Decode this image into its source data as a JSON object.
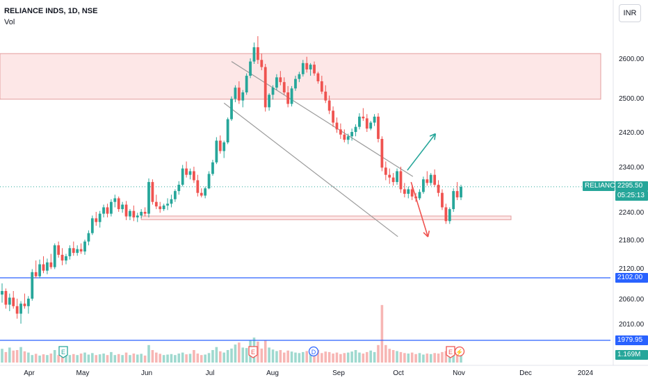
{
  "header": {
    "title": "RELIANCE INDS, 1D, NSE",
    "indicator": "Vol"
  },
  "currency_button": "INR",
  "colors": {
    "up": "#26a69a",
    "down": "#ef5350",
    "vol_up": "#9fd9cf",
    "vol_down": "#f7b6b4",
    "hline": "#2962ff",
    "zone_fill": "#fde7e7",
    "zone_stroke": "#e39c9c",
    "channel": "#9b9b9b",
    "dotted": "#26a69a",
    "axis_text": "#131722"
  },
  "price_axis": {
    "ticks": [
      "2600.00",
      "2500.00",
      "2420.00",
      "2340.00",
      "2240.00",
      "2180.00",
      "2120.00",
      "2060.00",
      "2010.00"
    ]
  },
  "time_axis": {
    "labels": [
      "Apr",
      "May",
      "Jun",
      "Jul",
      "Aug",
      "Sep",
      "Oct",
      "Nov",
      "Dec",
      "2024"
    ]
  },
  "price_labels": {
    "last_symbol": "RELIANCE",
    "last_price": "2295.50",
    "countdown": "05:25:13",
    "line_1": "2102.00",
    "line_2": "1979.95",
    "volume": "1.169M"
  },
  "event_markers": [
    "E",
    "E",
    "D",
    "E",
    "⚡"
  ],
  "chart_data": {
    "type": "candlestick",
    "title": "RELIANCE INDS, 1D, NSE",
    "ylim": [
      1940,
      2705
    ],
    "x_labels": [
      "Apr",
      "May",
      "Jun",
      "Jul",
      "Aug",
      "Sep",
      "Oct",
      "Nov",
      "Dec",
      "2024"
    ],
    "candles": [
      [
        2068,
        2090,
        2052,
        2075
      ],
      [
        2075,
        2080,
        2040,
        2048
      ],
      [
        2048,
        2070,
        2035,
        2062
      ],
      [
        2062,
        2075,
        2040,
        2045
      ],
      [
        2045,
        2060,
        2020,
        2030
      ],
      [
        2030,
        2055,
        2010,
        2050
      ],
      [
        2050,
        2070,
        2040,
        2045
      ],
      [
        2045,
        2065,
        2030,
        2060
      ],
      [
        2060,
        2118,
        2056,
        2112
      ],
      [
        2112,
        2136,
        2100,
        2104
      ],
      [
        2104,
        2138,
        2100,
        2128
      ],
      [
        2128,
        2145,
        2110,
        2115
      ],
      [
        2115,
        2140,
        2108,
        2132
      ],
      [
        2132,
        2150,
        2118,
        2122
      ],
      [
        2122,
        2172,
        2118,
        2168
      ],
      [
        2168,
        2176,
        2142,
        2148
      ],
      [
        2148,
        2162,
        2126,
        2136
      ],
      [
        2136,
        2150,
        2128,
        2145
      ],
      [
        2145,
        2168,
        2138,
        2162
      ],
      [
        2162,
        2176,
        2146,
        2152
      ],
      [
        2152,
        2168,
        2146,
        2160
      ],
      [
        2160,
        2172,
        2150,
        2155
      ],
      [
        2155,
        2180,
        2148,
        2176
      ],
      [
        2176,
        2200,
        2168,
        2194
      ],
      [
        2194,
        2232,
        2190,
        2226
      ],
      [
        2226,
        2240,
        2210,
        2218
      ],
      [
        2218,
        2242,
        2206,
        2236
      ],
      [
        2236,
        2256,
        2228,
        2250
      ],
      [
        2250,
        2258,
        2228,
        2236
      ],
      [
        2236,
        2268,
        2230,
        2262
      ],
      [
        2262,
        2278,
        2250,
        2270
      ],
      [
        2270,
        2274,
        2240,
        2246
      ],
      [
        2246,
        2262,
        2238,
        2256
      ],
      [
        2256,
        2264,
        2222,
        2230
      ],
      [
        2230,
        2246,
        2222,
        2242
      ],
      [
        2242,
        2254,
        2220,
        2228
      ],
      [
        2228,
        2238,
        2218,
        2232
      ],
      [
        2232,
        2246,
        2226,
        2240
      ],
      [
        2240,
        2250,
        2230,
        2236
      ],
      [
        2236,
        2314,
        2228,
        2306
      ],
      [
        2306,
        2312,
        2256,
        2262
      ],
      [
        2262,
        2278,
        2246,
        2252
      ],
      [
        2252,
        2262,
        2238,
        2246
      ],
      [
        2246,
        2258,
        2242,
        2254
      ],
      [
        2254,
        2270,
        2244,
        2258
      ],
      [
        2258,
        2278,
        2250,
        2268
      ],
      [
        2268,
        2290,
        2262,
        2286
      ],
      [
        2286,
        2308,
        2278,
        2300
      ],
      [
        2300,
        2344,
        2296,
        2336
      ],
      [
        2336,
        2352,
        2316,
        2322
      ],
      [
        2322,
        2336,
        2312,
        2330
      ],
      [
        2330,
        2340,
        2304,
        2310
      ],
      [
        2310,
        2322,
        2274,
        2282
      ],
      [
        2282,
        2292,
        2272,
        2276
      ],
      [
        2276,
        2296,
        2270,
        2292
      ],
      [
        2292,
        2330,
        2290,
        2324
      ],
      [
        2324,
        2356,
        2320,
        2350
      ],
      [
        2350,
        2408,
        2346,
        2400
      ],
      [
        2400,
        2412,
        2370,
        2376
      ],
      [
        2376,
        2400,
        2360,
        2396
      ],
      [
        2396,
        2454,
        2392,
        2450
      ],
      [
        2450,
        2504,
        2446,
        2498
      ],
      [
        2498,
        2532,
        2490,
        2526
      ],
      [
        2526,
        2542,
        2486,
        2494
      ],
      [
        2494,
        2520,
        2478,
        2514
      ],
      [
        2514,
        2562,
        2508,
        2556
      ],
      [
        2556,
        2600,
        2550,
        2592
      ],
      [
        2592,
        2640,
        2586,
        2628
      ],
      [
        2628,
        2656,
        2586,
        2596
      ],
      [
        2596,
        2612,
        2570,
        2578
      ],
      [
        2578,
        2586,
        2468,
        2478
      ],
      [
        2478,
        2512,
        2470,
        2508
      ],
      [
        2508,
        2532,
        2496,
        2526
      ],
      [
        2526,
        2560,
        2520,
        2552
      ],
      [
        2552,
        2568,
        2532,
        2540
      ],
      [
        2540,
        2552,
        2508,
        2514
      ],
      [
        2514,
        2530,
        2478,
        2486
      ],
      [
        2486,
        2530,
        2480,
        2524
      ],
      [
        2524,
        2556,
        2518,
        2548
      ],
      [
        2548,
        2566,
        2540,
        2560
      ],
      [
        2560,
        2596,
        2554,
        2588
      ],
      [
        2588,
        2604,
        2564,
        2572
      ],
      [
        2572,
        2588,
        2556,
        2584
      ],
      [
        2584,
        2592,
        2556,
        2562
      ],
      [
        2562,
        2566,
        2536,
        2542
      ],
      [
        2542,
        2556,
        2510,
        2516
      ],
      [
        2516,
        2532,
        2488,
        2494
      ],
      [
        2494,
        2506,
        2462,
        2470
      ],
      [
        2470,
        2480,
        2432,
        2442
      ],
      [
        2442,
        2454,
        2418,
        2426
      ],
      [
        2426,
        2440,
        2404,
        2414
      ],
      [
        2414,
        2426,
        2396,
        2402
      ],
      [
        2402,
        2416,
        2392,
        2410
      ],
      [
        2410,
        2428,
        2400,
        2420
      ],
      [
        2420,
        2438,
        2410,
        2432
      ],
      [
        2432,
        2464,
        2426,
        2456
      ],
      [
        2456,
        2476,
        2446,
        2452
      ],
      [
        2452,
        2462,
        2420,
        2428
      ],
      [
        2428,
        2446,
        2424,
        2442
      ],
      [
        2442,
        2462,
        2434,
        2456
      ],
      [
        2456,
        2464,
        2396,
        2404
      ],
      [
        2404,
        2410,
        2330,
        2338
      ],
      [
        2338,
        2352,
        2310,
        2322
      ],
      [
        2322,
        2336,
        2302,
        2316
      ],
      [
        2316,
        2326,
        2298,
        2306
      ],
      [
        2306,
        2336,
        2300,
        2330
      ],
      [
        2330,
        2340,
        2282,
        2290
      ],
      [
        2290,
        2304,
        2272,
        2280
      ],
      [
        2280,
        2296,
        2270,
        2290
      ],
      [
        2290,
        2298,
        2266,
        2274
      ],
      [
        2274,
        2282,
        2262,
        2270
      ],
      [
        2270,
        2290,
        2266,
        2284
      ],
      [
        2284,
        2318,
        2280,
        2312
      ],
      [
        2312,
        2330,
        2298,
        2304
      ],
      [
        2304,
        2326,
        2298,
        2322
      ],
      [
        2322,
        2334,
        2296,
        2300
      ],
      [
        2300,
        2310,
        2274,
        2282
      ],
      [
        2282,
        2290,
        2244,
        2250
      ],
      [
        2250,
        2258,
        2214,
        2220
      ],
      [
        2220,
        2250,
        2214,
        2246
      ],
      [
        2246,
        2292,
        2240,
        2286
      ],
      [
        2286,
        2306,
        2266,
        2272
      ],
      [
        2272,
        2300,
        2266,
        2295.5
      ]
    ],
    "volume_relative": [
      0.55,
      0.42,
      0.6,
      0.48,
      0.5,
      0.62,
      0.45,
      0.4,
      0.3,
      0.35,
      0.28,
      0.33,
      0.3,
      0.36,
      0.5,
      0.3,
      0.28,
      0.32,
      0.3,
      0.34,
      0.3,
      0.36,
      0.4,
      0.32,
      0.38,
      0.3,
      0.33,
      0.36,
      0.3,
      0.42,
      0.3,
      0.34,
      0.3,
      0.4,
      0.3,
      0.36,
      0.32,
      0.35,
      0.28,
      0.7,
      0.5,
      0.4,
      0.35,
      0.3,
      0.32,
      0.34,
      0.3,
      0.36,
      0.4,
      0.33,
      0.35,
      0.5,
      0.36,
      0.3,
      0.32,
      0.38,
      0.5,
      0.62,
      0.45,
      0.4,
      0.5,
      0.56,
      0.72,
      0.8,
      0.6,
      0.58,
      0.9,
      1.0,
      0.84,
      0.56,
      0.9,
      0.6,
      0.52,
      0.46,
      0.5,
      0.4,
      0.48,
      0.44,
      0.4,
      0.38,
      0.42,
      0.46,
      0.36,
      0.4,
      0.5,
      0.38,
      0.44,
      0.42,
      0.36,
      0.4,
      0.34,
      0.38,
      0.4,
      0.44,
      0.5,
      0.4,
      0.36,
      0.42,
      0.48,
      0.42,
      0.7,
      2.3,
      0.7,
      0.55,
      0.5,
      0.46,
      0.42,
      0.38,
      0.36,
      0.4,
      0.34,
      0.38,
      0.32,
      0.36,
      0.34,
      0.38,
      0.36,
      0.42,
      0.46,
      0.5,
      0.55,
      0.5,
      0.48
    ],
    "last_price": 2295.5,
    "horizontal_lines": [
      2102.0,
      1979.95
    ],
    "resistance_zone": [
      2497,
      2612
    ],
    "support_zone": [
      2223,
      2231
    ],
    "channel": {
      "upper": [
        [
          61,
          2592
        ],
        [
          107,
          2329
        ]
      ],
      "lower": [
        [
          59,
          2488
        ],
        [
          103,
          2197
        ]
      ]
    },
    "arrows": {
      "bullish": [
        [
          107,
          2332
        ],
        [
          113,
          2416
        ]
      ],
      "bearish": [
        [
          108,
          2306
        ],
        [
          111,
          2186
        ]
      ]
    }
  }
}
